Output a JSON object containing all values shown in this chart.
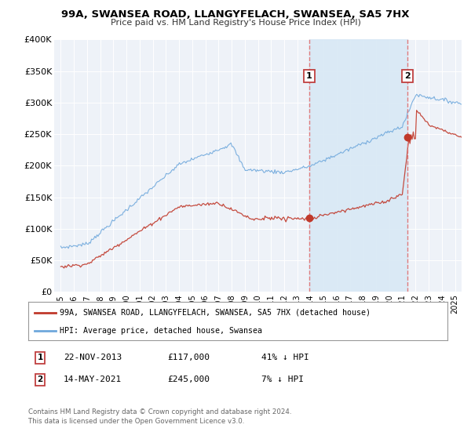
{
  "title": "99A, SWANSEA ROAD, LLANGYFELACH, SWANSEA, SA5 7HX",
  "subtitle": "Price paid vs. HM Land Registry's House Price Index (HPI)",
  "hpi_label": "HPI: Average price, detached house, Swansea",
  "property_label": "99A, SWANSEA ROAD, LLANGYFELACH, SWANSEA, SA5 7HX (detached house)",
  "hpi_color": "#6fa8dc",
  "hpi_fill_color": "#dce9f7",
  "property_color": "#c0392b",
  "dot_color": "#c0392b",
  "background_color": "#ffffff",
  "plot_bg_color": "#eef2f8",
  "grid_color": "#ffffff",
  "vline_color": "#e07070",
  "shade_color": "#d8e8f5",
  "annotation1": {
    "label": "1",
    "date": "22-NOV-2013",
    "price": "£117,000",
    "pct": "41% ↓ HPI",
    "x_year": 2013.9
  },
  "annotation2": {
    "label": "2",
    "date": "14-MAY-2021",
    "price": "£245,000",
    "pct": "7% ↓ HPI",
    "x_year": 2021.37
  },
  "sale1_y": 117000,
  "sale2_y": 245000,
  "ylim": [
    0,
    400000
  ],
  "yticks": [
    0,
    50000,
    100000,
    150000,
    200000,
    250000,
    300000,
    350000,
    400000
  ],
  "ytick_labels": [
    "£0",
    "£50K",
    "£100K",
    "£150K",
    "£200K",
    "£250K",
    "£300K",
    "£350K",
    "£400K"
  ],
  "xlim": [
    1994.5,
    2025.5
  ],
  "footer1": "Contains HM Land Registry data © Crown copyright and database right 2024.",
  "footer2": "This data is licensed under the Open Government Licence v3.0."
}
